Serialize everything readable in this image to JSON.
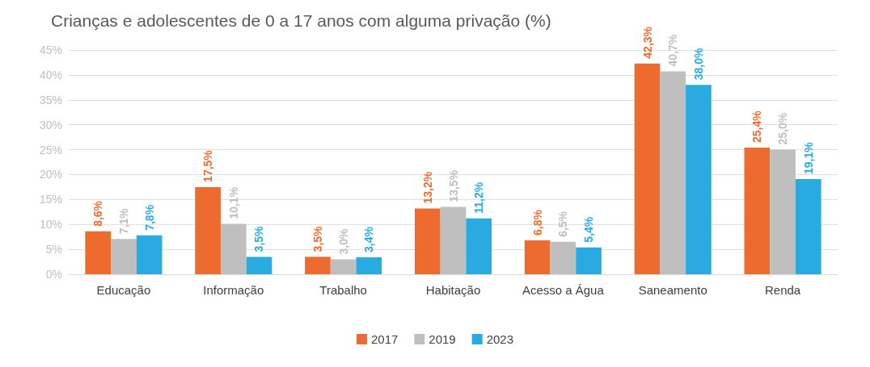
{
  "chart_data": {
    "type": "bar",
    "title": "Crianças e adolescentes de 0 a 17 anos com alguma privação (%)",
    "categories": [
      "Educação",
      "Informação",
      "Trabalho",
      "Habitação",
      "Acesso a Água",
      "Saneamento",
      "Renda"
    ],
    "series": [
      {
        "name": "2017",
        "color": "#ed6b2f",
        "values": [
          8.6,
          17.5,
          3.5,
          13.2,
          6.8,
          42.3,
          25.4
        ],
        "value_labels": [
          "8,6%",
          "17,5%",
          "3,5%",
          "13,2%",
          "6,8%",
          "42,3%",
          "25,4%"
        ]
      },
      {
        "name": "2019",
        "color": "#bfbfbf",
        "values": [
          7.1,
          10.1,
          3.0,
          13.5,
          6.5,
          40.7,
          25.0
        ],
        "value_labels": [
          "7,1%",
          "10,1%",
          "3,0%",
          "13,5%",
          "6,5%",
          "40,7%",
          "25,0%"
        ]
      },
      {
        "name": "2023",
        "color": "#29abe2",
        "values": [
          7.8,
          3.5,
          3.4,
          11.2,
          5.4,
          38.0,
          19.1
        ],
        "value_labels": [
          "7,8%",
          "3,5%",
          "3,4%",
          "11,2%",
          "5,4%",
          "38,0%",
          "19,1%"
        ]
      }
    ],
    "ylim": [
      0,
      45
    ],
    "yticks": [
      {
        "value": 0,
        "label": "0%"
      },
      {
        "value": 5,
        "label": "5%"
      },
      {
        "value": 10,
        "label": "10%"
      },
      {
        "value": 15,
        "label": "15%"
      },
      {
        "value": 20,
        "label": "20%"
      },
      {
        "value": 25,
        "label": "25%"
      },
      {
        "value": 30,
        "label": "30%"
      },
      {
        "value": 35,
        "label": "35%"
      },
      {
        "value": 40,
        "label": "40%"
      },
      {
        "value": 45,
        "label": "45%"
      }
    ],
    "grid": "y",
    "legend": "bottom"
  }
}
